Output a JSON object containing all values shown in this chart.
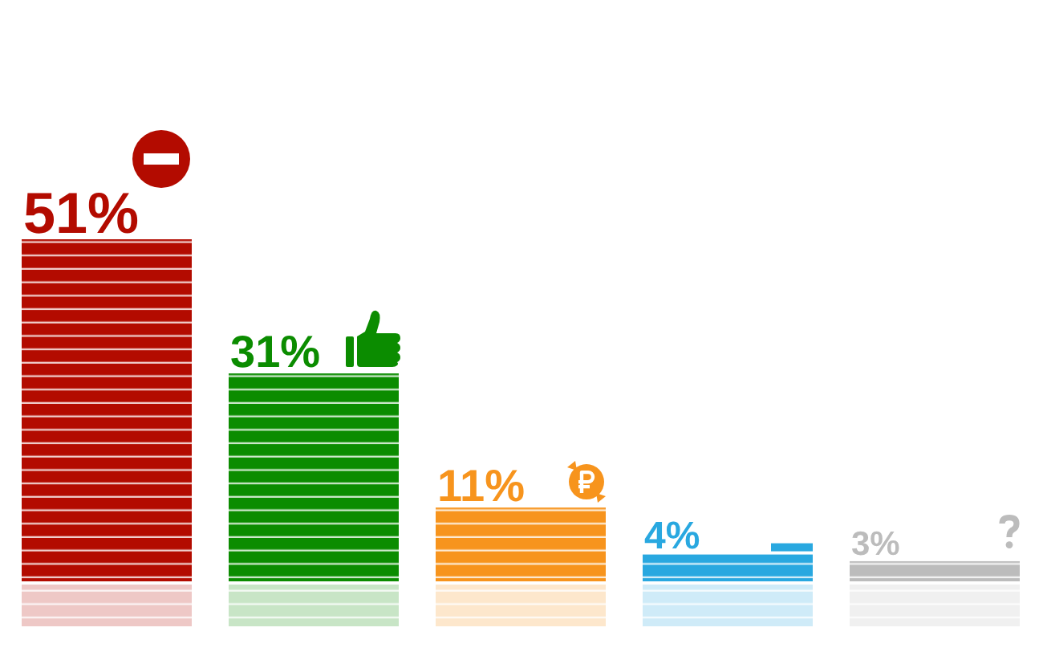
{
  "chart_data": {
    "type": "bar",
    "categories": [
      null,
      null,
      null,
      null,
      null
    ],
    "values": [
      51,
      31,
      11,
      4,
      3
    ],
    "colors": [
      "#b30b00",
      "#0b8c00",
      "#f7941d",
      "#29a8e0",
      "#bcbcbc"
    ],
    "value_labels": [
      "51%",
      "31%",
      "11%",
      "4%",
      "3%"
    ],
    "tick_labels": false
  }
}
